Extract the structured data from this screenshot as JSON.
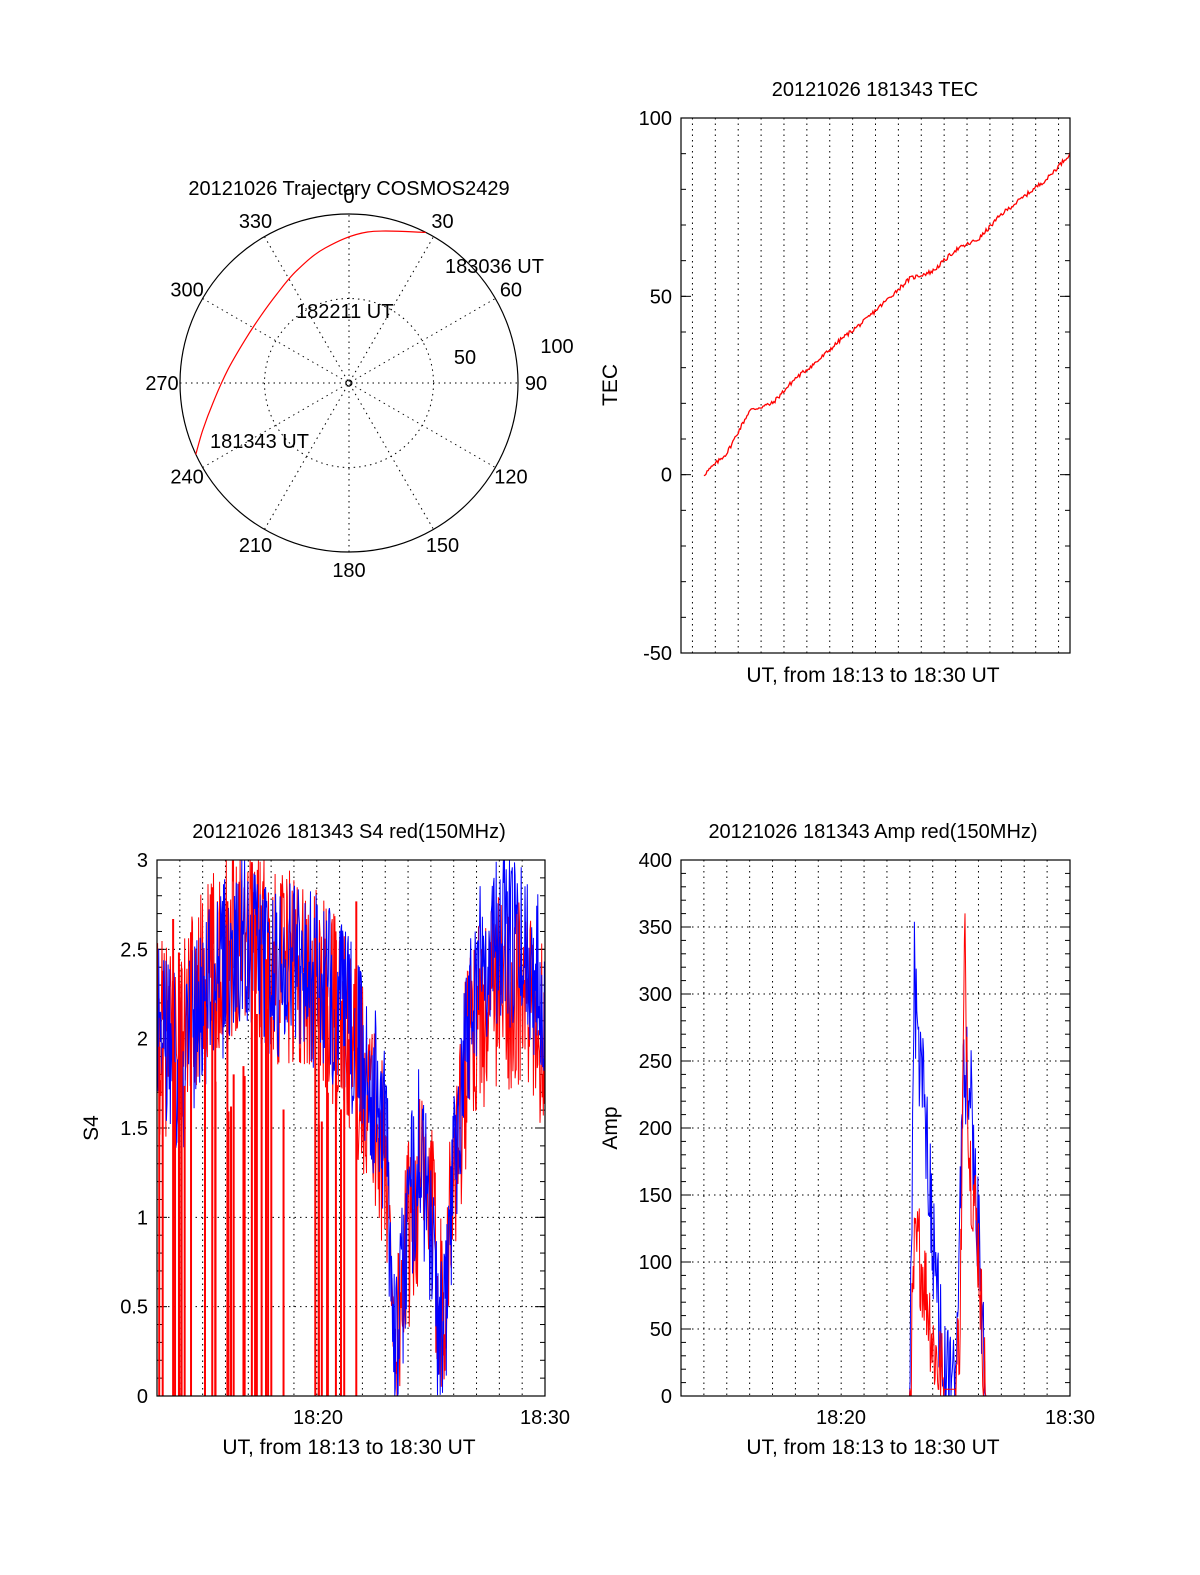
{
  "chart_data": [
    {
      "type": "polar",
      "title": "20121026 Trajectory COSMOS2429",
      "angle_labels": [
        "0",
        "30",
        "60",
        "90",
        "120",
        "150",
        "180",
        "210",
        "240",
        "270",
        "300",
        "330"
      ],
      "radius_labels": [
        "50",
        "100"
      ],
      "rlim": [
        0,
        100
      ],
      "series": [
        {
          "color": "#ff0000",
          "points": [
            {
              "az": 245,
              "el": 0
            },
            {
              "az": 252,
              "el": 8
            },
            {
              "az": 262,
              "el": 17
            },
            {
              "az": 276,
              "el": 25
            },
            {
              "az": 292,
              "el": 30
            },
            {
              "az": 307,
              "el": 31
            },
            {
              "az": 321,
              "el": 29
            },
            {
              "az": 335,
              "el": 24
            },
            {
              "az": 350,
              "el": 17
            },
            {
              "az": 7,
              "el": 9
            },
            {
              "az": 27,
              "el": 0
            }
          ]
        }
      ],
      "annotations": [
        "181343 UT",
        "182211 UT",
        "183036 UT"
      ]
    },
    {
      "type": "line",
      "title": "20121026 181343 TEC",
      "ylabel": "TEC",
      "xlabel": "UT, from 18:13 to 18:30 UT",
      "ylim": [
        -50,
        100
      ],
      "yticks": [
        "-50",
        "0",
        "50",
        "100"
      ],
      "xlim": [
        "18:13",
        "18:30"
      ],
      "grid": true,
      "series": [
        {
          "color": "#ff0000",
          "x": [
            "18:14",
            "18:15",
            "18:16",
            "18:17",
            "18:18",
            "18:19",
            "18:20",
            "18:21",
            "18:22",
            "18:23",
            "18:24",
            "18:25",
            "18:26",
            "18:27",
            "18:28",
            "18:29",
            "18:30"
          ],
          "y": [
            0,
            6,
            18,
            20,
            27,
            32,
            38,
            43,
            49,
            55,
            57,
            63,
            66,
            73,
            78,
            83,
            90
          ]
        }
      ]
    },
    {
      "type": "line",
      "title": "20121026 181343 S4 red(150MHz)",
      "ylabel": "S4",
      "xlabel": "UT, from 18:13 to 18:30 UT",
      "ylim": [
        0,
        3
      ],
      "yticks": [
        "0",
        "0.5",
        "1",
        "1.5",
        "2",
        "2.5",
        "3"
      ],
      "xlim": [
        "18:13",
        "18:30"
      ],
      "xticks": [
        "18:20",
        "18:30"
      ],
      "grid": true,
      "series": [
        {
          "color": "#0000ff",
          "x": [
            "18:13",
            "18:14",
            "18:15",
            "18:16",
            "18:17",
            "18:18",
            "18:19",
            "18:20",
            "18:21",
            "18:22",
            "18:23",
            "18:23.5",
            "18:24",
            "18:24.5",
            "18:25",
            "18:25.5",
            "18:26",
            "18:26.5",
            "18:27",
            "18:28",
            "18:29",
            "18:30"
          ],
          "y": [
            2.2,
            1.8,
            2.2,
            2.4,
            2.6,
            2.3,
            2.5,
            2.3,
            2.2,
            1.9,
            1.5,
            0.2,
            1.0,
            1.4,
            0.9,
            0.2,
            1.3,
            2.0,
            2.4,
            2.6,
            2.5,
            2.3
          ]
        },
        {
          "color": "#ff0000",
          "x": [
            "18:13",
            "18:14",
            "18:15",
            "18:16",
            "18:17",
            "18:18",
            "18:19",
            "18:20",
            "18:21",
            "18:22",
            "18:23",
            "18:23.5",
            "18:24",
            "18:24.5",
            "18:25",
            "18:25.5",
            "18:26",
            "18:26.5",
            "18:27",
            "18:28",
            "18:29",
            "18:30"
          ],
          "y": [
            2.0,
            2.0,
            2.3,
            2.5,
            2.7,
            2.4,
            2.4,
            2.3,
            2.1,
            1.8,
            1.3,
            0.3,
            0.9,
            1.2,
            1.0,
            0.5,
            1.2,
            1.8,
            2.1,
            2.3,
            2.2,
            2.0
          ]
        }
      ]
    },
    {
      "type": "line",
      "title": "20121026 181343 Amp red(150MHz)",
      "ylabel": "Amp",
      "xlabel": "UT, from 18:13 to 18:30 UT",
      "ylim": [
        0,
        400
      ],
      "yticks": [
        "0",
        "50",
        "100",
        "150",
        "200",
        "250",
        "300",
        "350",
        "400"
      ],
      "xlim": [
        "18:13",
        "18:30"
      ],
      "xticks": [
        "18:20",
        "18:30"
      ],
      "grid": true,
      "series": [
        {
          "color": "#0000ff",
          "x": [
            "18:14",
            "18:23",
            "18:23.2",
            "18:23.4",
            "18:23.6",
            "18:23.8",
            "18:24",
            "18:24.5",
            "18:25",
            "18:25.2",
            "18:25.4",
            "18:25.6",
            "18:25.8",
            "18:26",
            "18:26.3",
            "18:30"
          ],
          "y": [
            0,
            0,
            310,
            260,
            230,
            180,
            120,
            10,
            5,
            150,
            250,
            230,
            190,
            120,
            0,
            0
          ]
        },
        {
          "color": "#ff0000",
          "x": [
            "18:14",
            "18:23",
            "18:23.2",
            "18:23.4",
            "18:23.6",
            "18:23.8",
            "18:24",
            "18:24.5",
            "18:25",
            "18:25.2",
            "18:25.4",
            "18:25.6",
            "18:25.8",
            "18:26",
            "18:26.3",
            "18:30"
          ],
          "y": [
            0,
            0,
            100,
            110,
            90,
            70,
            40,
            5,
            5,
            60,
            340,
            180,
            150,
            110,
            0,
            0
          ]
        }
      ]
    }
  ]
}
